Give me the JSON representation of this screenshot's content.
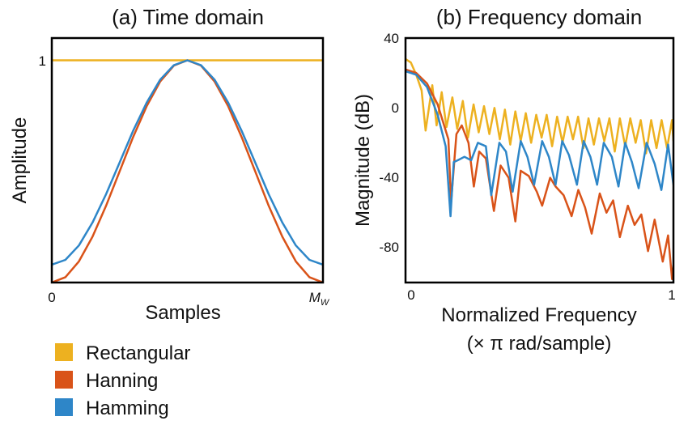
{
  "chart_data": [
    {
      "type": "line",
      "title": "(a) Time domain",
      "xlabel": "Samples",
      "ylabel": "Amplitude",
      "x_ticks": [
        {
          "label": "0",
          "value": 0
        },
        {
          "label": "M",
          "sub": "W",
          "value": 1
        }
      ],
      "y_ticks": [
        {
          "label": "1",
          "value": 1
        }
      ],
      "xlim": [
        0,
        1
      ],
      "ylim": [
        0,
        1.1
      ],
      "grid": false,
      "series": [
        {
          "name": "Rectangular",
          "color": "#EDB120",
          "x": [
            0,
            0.1,
            0.2,
            0.3,
            0.4,
            0.5,
            0.6,
            0.7,
            0.8,
            0.9,
            1
          ],
          "y": [
            1,
            1,
            1,
            1,
            1,
            1,
            1,
            1,
            1,
            1,
            1
          ]
        },
        {
          "name": "Hanning",
          "color": "#D95319",
          "x": [
            0,
            0.05,
            0.1,
            0.15,
            0.2,
            0.25,
            0.3,
            0.35,
            0.4,
            0.45,
            0.5,
            0.55,
            0.6,
            0.65,
            0.7,
            0.75,
            0.8,
            0.85,
            0.9,
            0.95,
            1
          ],
          "y": [
            0,
            0.024,
            0.095,
            0.206,
            0.345,
            0.5,
            0.655,
            0.794,
            0.905,
            0.976,
            1,
            0.976,
            0.905,
            0.794,
            0.655,
            0.5,
            0.345,
            0.206,
            0.095,
            0.024,
            0
          ]
        },
        {
          "name": "Hamming",
          "color": "#2E86C8",
          "x": [
            0,
            0.05,
            0.1,
            0.15,
            0.2,
            0.25,
            0.3,
            0.35,
            0.4,
            0.45,
            0.5,
            0.55,
            0.6,
            0.65,
            0.7,
            0.75,
            0.8,
            0.85,
            0.9,
            0.95,
            1
          ],
          "y": [
            0.08,
            0.102,
            0.167,
            0.27,
            0.397,
            0.54,
            0.683,
            0.81,
            0.913,
            0.978,
            1,
            0.978,
            0.913,
            0.81,
            0.683,
            0.54,
            0.397,
            0.27,
            0.167,
            0.102,
            0.08
          ]
        }
      ]
    },
    {
      "type": "line",
      "title": "(b) Frequency domain",
      "xlabel": "Normalized Frequency",
      "xlabel2": "(× π rad/sample)",
      "ylabel": "Magnitude (dB)",
      "x_ticks": [
        {
          "label": "0",
          "value": 0
        },
        {
          "label": "1",
          "value": 1
        }
      ],
      "y_ticks": [
        {
          "label": "40",
          "value": 40
        },
        {
          "label": "0",
          "value": 0
        },
        {
          "label": "-40",
          "value": -40
        },
        {
          "label": "-80",
          "value": -80
        }
      ],
      "xlim": [
        0,
        1
      ],
      "ylim": [
        -100,
        40
      ],
      "grid": false,
      "series": [
        {
          "name": "Rectangular",
          "color": "#EDB120",
          "x": [
            0,
            0.02,
            0.04,
            0.06,
            0.075,
            0.1,
            0.116,
            0.135,
            0.153,
            0.175,
            0.193,
            0.214,
            0.233,
            0.254,
            0.273,
            0.293,
            0.313,
            0.332,
            0.352,
            0.371,
            0.391,
            0.41,
            0.43,
            0.449,
            0.469,
            0.488,
            0.508,
            0.527,
            0.547,
            0.566,
            0.586,
            0.605,
            0.625,
            0.644,
            0.664,
            0.683,
            0.703,
            0.722,
            0.742,
            0.761,
            0.781,
            0.8,
            0.82,
            0.839,
            0.859,
            0.878,
            0.898,
            0.917,
            0.937,
            0.956,
            0.976,
            0.995,
            1
          ],
          "y": [
            28,
            26,
            19,
            10,
            -13,
            13,
            -10,
            9,
            -11,
            6,
            -12,
            4,
            -17,
            2,
            -14,
            1,
            -15,
            0,
            -18,
            -1,
            -21,
            -2,
            -19,
            -3,
            -20,
            -4,
            -17,
            -4,
            -22,
            -5,
            -20,
            -5,
            -18,
            -5,
            -23,
            -6,
            -21,
            -6,
            -19,
            -6,
            -25,
            -6,
            -22,
            -6,
            -20,
            -7,
            -26,
            -7,
            -23,
            -7,
            -23,
            -7,
            -19
          ]
        },
        {
          "name": "Hanning",
          "color": "#D95319",
          "x": [
            0,
            0.04,
            0.08,
            0.12,
            0.16,
            0.17,
            0.19,
            0.21,
            0.235,
            0.255,
            0.275,
            0.3,
            0.33,
            0.355,
            0.385,
            0.41,
            0.43,
            0.46,
            0.49,
            0.51,
            0.54,
            0.56,
            0.59,
            0.62,
            0.645,
            0.67,
            0.695,
            0.725,
            0.75,
            0.775,
            0.8,
            0.83,
            0.855,
            0.88,
            0.905,
            0.93,
            0.96,
            0.98,
            0.995,
            1
          ],
          "y": [
            22,
            20,
            14,
            2,
            -18,
            -54,
            -15,
            -10,
            -20,
            -45,
            -25,
            -29,
            -59,
            -33,
            -40,
            -65,
            -36,
            -39,
            -48,
            -56,
            -40,
            -45,
            -50,
            -62,
            -47,
            -57,
            -72,
            -49,
            -60,
            -53,
            -74,
            -56,
            -67,
            -61,
            -82,
            -64,
            -88,
            -73,
            -98,
            -90
          ]
        },
        {
          "name": "Hamming",
          "color": "#2E86C8",
          "x": [
            0,
            0.04,
            0.08,
            0.12,
            0.15,
            0.168,
            0.18,
            0.195,
            0.22,
            0.245,
            0.27,
            0.3,
            0.32,
            0.35,
            0.375,
            0.4,
            0.43,
            0.455,
            0.48,
            0.51,
            0.535,
            0.56,
            0.585,
            0.61,
            0.64,
            0.665,
            0.69,
            0.715,
            0.74,
            0.77,
            0.795,
            0.82,
            0.845,
            0.87,
            0.9,
            0.93,
            0.955,
            0.98,
            1
          ],
          "y": [
            21,
            19,
            12,
            -4,
            -22,
            -62,
            -31,
            -30,
            -28,
            -30,
            -20,
            -22,
            -50,
            -20,
            -25,
            -48,
            -19,
            -28,
            -44,
            -19,
            -28,
            -44,
            -19,
            -27,
            -44,
            -19,
            -28,
            -44,
            -20,
            -28,
            -45,
            -20,
            -31,
            -46,
            -20,
            -32,
            -47,
            -21,
            -44
          ]
        }
      ]
    }
  ],
  "legend": {
    "position": "bottom-left",
    "items": [
      {
        "label": "Rectangular",
        "color": "#EDB120"
      },
      {
        "label": "Hanning",
        "color": "#D95319"
      },
      {
        "label": "Hamming",
        "color": "#2E86C8"
      }
    ]
  }
}
